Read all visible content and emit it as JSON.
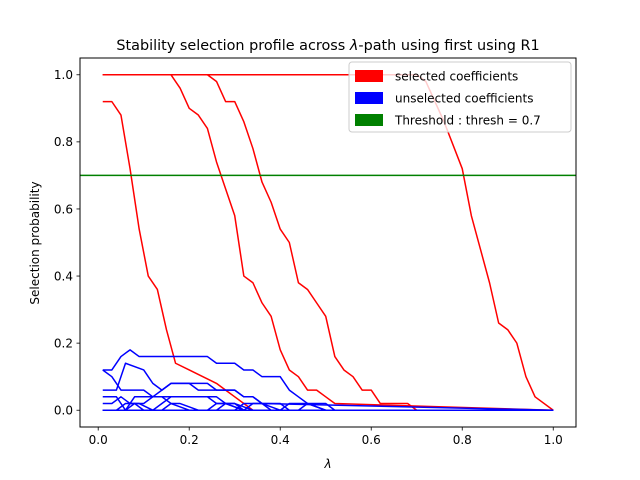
{
  "chart_data": {
    "type": "line",
    "title_prefix": "Stability selection profile across ",
    "title_symbol": "λ",
    "title_suffix": "-path using first using R1",
    "xlabel": "λ",
    "ylabel": "Selection probability",
    "xlim": [
      -0.04,
      1.05
    ],
    "ylim": [
      -0.05,
      1.05
    ],
    "xticks": [
      0.0,
      0.2,
      0.4,
      0.6,
      0.8,
      1.0
    ],
    "xtick_labels": [
      "0.0",
      "0.2",
      "0.4",
      "0.6",
      "0.8",
      "1.0"
    ],
    "yticks": [
      0.0,
      0.2,
      0.4,
      0.6,
      0.8,
      1.0
    ],
    "ytick_labels": [
      "0.0",
      "0.2",
      "0.4",
      "0.6",
      "0.8",
      "1.0"
    ],
    "grid": false,
    "legend_position": "top-right",
    "legend": [
      {
        "label": "selected coefficients",
        "color": "#ff0000"
      },
      {
        "label": "unselected coefficients",
        "color": "#0000ff"
      },
      {
        "label": "Threshold : thresh = 0.7",
        "color": "#008000"
      }
    ],
    "threshold": {
      "value": 0.7,
      "color": "#008000"
    },
    "series": [
      {
        "group": "selected",
        "color": "#ff0000",
        "x": [
          0.01,
          0.7,
          0.72,
          0.76,
          0.8,
          0.82,
          0.84,
          0.86,
          0.88,
          0.9,
          0.92,
          0.94,
          0.96,
          1.0
        ],
        "y": [
          1.0,
          1.0,
          0.98,
          0.86,
          0.72,
          0.58,
          0.48,
          0.38,
          0.26,
          0.24,
          0.2,
          0.1,
          0.04,
          0.0
        ]
      },
      {
        "group": "selected",
        "color": "#ff0000",
        "x": [
          0.01,
          0.24,
          0.26,
          0.28,
          0.3,
          0.32,
          0.34,
          0.36,
          0.38,
          0.4,
          0.42,
          0.44,
          0.46,
          0.48,
          0.5,
          0.52,
          0.54,
          0.56,
          0.58,
          0.6,
          0.62,
          0.64,
          0.66,
          0.68,
          0.7,
          1.0
        ],
        "y": [
          1.0,
          1.0,
          0.98,
          0.92,
          0.92,
          0.86,
          0.78,
          0.68,
          0.62,
          0.54,
          0.5,
          0.38,
          0.36,
          0.32,
          0.28,
          0.16,
          0.12,
          0.1,
          0.06,
          0.06,
          0.02,
          0.02,
          0.02,
          0.02,
          0.0,
          0.0
        ]
      },
      {
        "group": "selected",
        "color": "#ff0000",
        "x": [
          0.01,
          0.16,
          0.18,
          0.2,
          0.22,
          0.24,
          0.26,
          0.28,
          0.3,
          0.32,
          0.34,
          0.36,
          0.38,
          0.4,
          0.42,
          0.44,
          0.46,
          0.48,
          0.5,
          0.52,
          1.0
        ],
        "y": [
          1.0,
          1.0,
          0.96,
          0.9,
          0.88,
          0.84,
          0.74,
          0.66,
          0.58,
          0.4,
          0.38,
          0.32,
          0.28,
          0.18,
          0.12,
          0.1,
          0.06,
          0.06,
          0.04,
          0.02,
          0.0
        ]
      },
      {
        "group": "selected",
        "color": "#ff0000",
        "x": [
          0.01,
          0.03,
          0.05,
          0.07,
          0.09,
          0.11,
          0.13,
          0.15,
          0.17,
          0.2,
          0.23,
          0.26,
          0.28,
          0.3,
          0.32,
          0.34,
          1.0
        ],
        "y": [
          0.92,
          0.92,
          0.88,
          0.72,
          0.54,
          0.4,
          0.36,
          0.24,
          0.14,
          0.12,
          0.1,
          0.08,
          0.06,
          0.04,
          0.02,
          0.0,
          0.0
        ]
      },
      {
        "group": "unselected",
        "color": "#0000ff",
        "x": [
          0.01,
          0.03,
          0.05,
          0.07,
          0.09,
          0.14,
          0.24,
          0.26,
          0.3,
          0.32,
          0.34,
          0.36,
          0.4,
          0.42,
          0.44,
          0.46,
          0.5,
          1.0
        ],
        "y": [
          0.12,
          0.12,
          0.16,
          0.18,
          0.16,
          0.16,
          0.16,
          0.14,
          0.14,
          0.12,
          0.12,
          0.1,
          0.1,
          0.06,
          0.04,
          0.02,
          0.0,
          0.0
        ]
      },
      {
        "group": "unselected",
        "color": "#0000ff",
        "x": [
          0.01,
          0.03,
          0.05,
          0.07,
          0.1,
          0.12,
          0.14,
          0.16,
          0.2,
          0.24,
          0.26,
          0.3,
          0.32,
          0.34,
          0.36,
          0.4,
          0.42,
          0.44,
          1.0
        ],
        "y": [
          0.12,
          0.1,
          0.06,
          0.06,
          0.06,
          0.04,
          0.06,
          0.08,
          0.08,
          0.08,
          0.06,
          0.06,
          0.04,
          0.04,
          0.02,
          0.02,
          0.0,
          0.0,
          0.0
        ]
      },
      {
        "group": "unselected",
        "color": "#0000ff",
        "x": [
          0.01,
          0.04,
          0.06,
          0.1,
          0.12,
          0.14,
          0.16,
          0.2,
          0.22,
          0.3,
          0.32,
          0.34,
          0.36,
          1.0
        ],
        "y": [
          0.06,
          0.06,
          0.14,
          0.12,
          0.08,
          0.06,
          0.08,
          0.08,
          0.06,
          0.06,
          0.04,
          0.04,
          0.02,
          0.0
        ]
      },
      {
        "group": "unselected",
        "color": "#0000ff",
        "x": [
          0.01,
          0.04,
          0.06,
          0.08,
          0.1,
          0.14,
          0.2,
          0.24,
          0.26,
          0.28,
          0.3,
          0.34,
          0.38,
          0.42,
          1.0
        ],
        "y": [
          0.04,
          0.04,
          0.0,
          0.04,
          0.04,
          0.04,
          0.04,
          0.04,
          0.02,
          0.02,
          0.02,
          0.0,
          0.0,
          0.0,
          0.0
        ]
      },
      {
        "group": "unselected",
        "color": "#0000ff",
        "x": [
          0.01,
          0.03,
          0.05,
          0.07,
          0.09,
          0.12,
          0.14,
          0.16,
          0.18,
          0.22,
          0.26,
          0.28,
          0.32,
          1.0
        ],
        "y": [
          0.02,
          0.02,
          0.04,
          0.02,
          0.02,
          0.0,
          0.02,
          0.04,
          0.04,
          0.04,
          0.04,
          0.02,
          0.0,
          0.0
        ]
      },
      {
        "group": "unselected",
        "color": "#0000ff",
        "x": [
          0.01,
          0.04,
          0.06,
          0.1,
          0.12,
          0.14,
          0.16,
          0.18,
          0.22,
          0.24,
          1.0
        ],
        "y": [
          0.0,
          0.0,
          0.02,
          0.02,
          0.04,
          0.04,
          0.02,
          0.02,
          0.0,
          0.0,
          0.0
        ]
      },
      {
        "group": "unselected",
        "color": "#0000ff",
        "x": [
          0.01,
          0.2,
          0.24,
          0.26,
          0.3,
          0.32,
          0.34,
          0.36,
          0.4,
          0.42,
          0.46,
          0.5,
          0.52,
          1.0
        ],
        "y": [
          0.0,
          0.0,
          0.0,
          0.02,
          0.02,
          0.0,
          0.02,
          0.02,
          0.0,
          0.02,
          0.02,
          0.0,
          0.0,
          0.0
        ]
      },
      {
        "group": "unselected",
        "color": "#0000ff",
        "x": [
          0.01,
          0.3,
          0.32,
          0.36,
          0.38,
          0.44,
          0.46,
          0.5,
          0.52,
          0.56,
          0.58,
          1.0
        ],
        "y": [
          0.0,
          0.0,
          0.02,
          0.02,
          0.0,
          0.0,
          0.02,
          0.02,
          0.0,
          0.0,
          0.0,
          0.0
        ]
      },
      {
        "group": "unselected",
        "color": "#0000ff",
        "x": [
          0.01,
          0.06,
          0.08,
          0.1,
          0.14,
          0.16,
          0.2,
          0.26,
          0.28,
          0.32,
          1.0
        ],
        "y": [
          0.0,
          0.0,
          0.02,
          0.0,
          0.0,
          0.02,
          0.0,
          0.0,
          0.02,
          0.0,
          0.0
        ]
      }
    ]
  }
}
